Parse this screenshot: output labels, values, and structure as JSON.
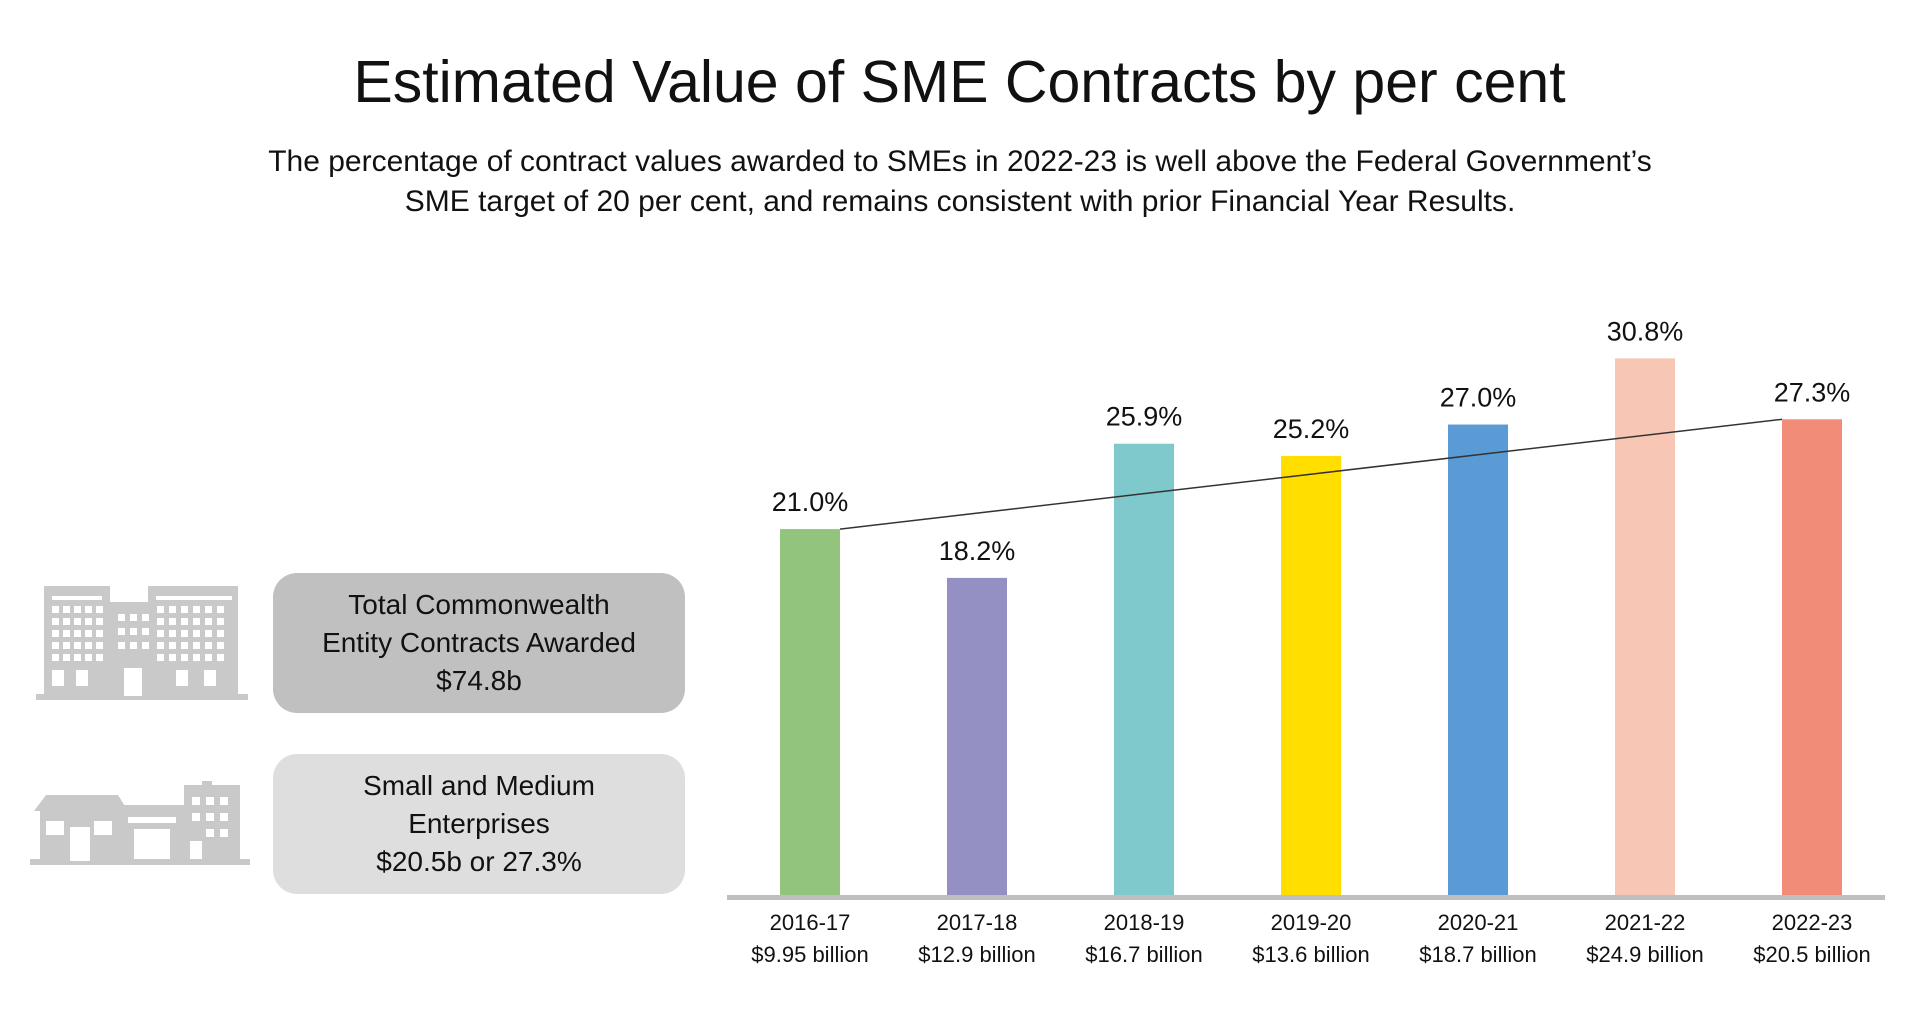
{
  "title": "Estimated Value of SME Contracts by per cent",
  "subtitle": {
    "line1": "The percentage of contract values awarded to SMEs in 2022-23 is well above the Federal Government’s",
    "line2": "SME target of 20 per cent, and remains consistent with prior Financial Year Results."
  },
  "info_boxes": {
    "total": {
      "line1": "Total Commonwealth",
      "line2": "Entity Contracts Awarded",
      "line3": "$74.8b",
      "color": "#bfc0bf"
    },
    "sme": {
      "line1": "Small and Medium",
      "line2": "Enterprises",
      "line3": "$20.5b or 27.3%",
      "color": "#dedede"
    }
  },
  "icons": {
    "total": "office-buildings-icon",
    "sme": "small-shops-icon",
    "color": "#c9c9c9"
  },
  "chart_data": {
    "type": "bar",
    "categories": [
      "2016-17",
      "2017-18",
      "2018-19",
      "2019-20",
      "2020-21",
      "2021-22",
      "2022-23"
    ],
    "category_sublabels": [
      "$9.95 billion",
      "$12.9 billion",
      "$16.7 billion",
      "$13.6 billion",
      "$18.7 billion",
      "$24.9 billion",
      "$20.5 billion"
    ],
    "values": [
      21.0,
      18.2,
      25.9,
      25.2,
      27.0,
      30.8,
      27.3
    ],
    "data_labels": [
      "21.0%",
      "18.2%",
      "25.9%",
      "25.2%",
      "27.0%",
      "30.8%",
      "27.3%"
    ],
    "unit": "%",
    "bar_colors": [
      "#93c47d",
      "#9590c4",
      "#7fc8cc",
      "#ffde00",
      "#5b9bd5",
      "#f8c6b5",
      "#f08c78"
    ],
    "trendline": {
      "from": "2016-17",
      "to": "2022-23",
      "color": "#333333"
    },
    "ylim": [
      0,
      33
    ],
    "grid": false,
    "axis_color": "#bfbfbf"
  }
}
